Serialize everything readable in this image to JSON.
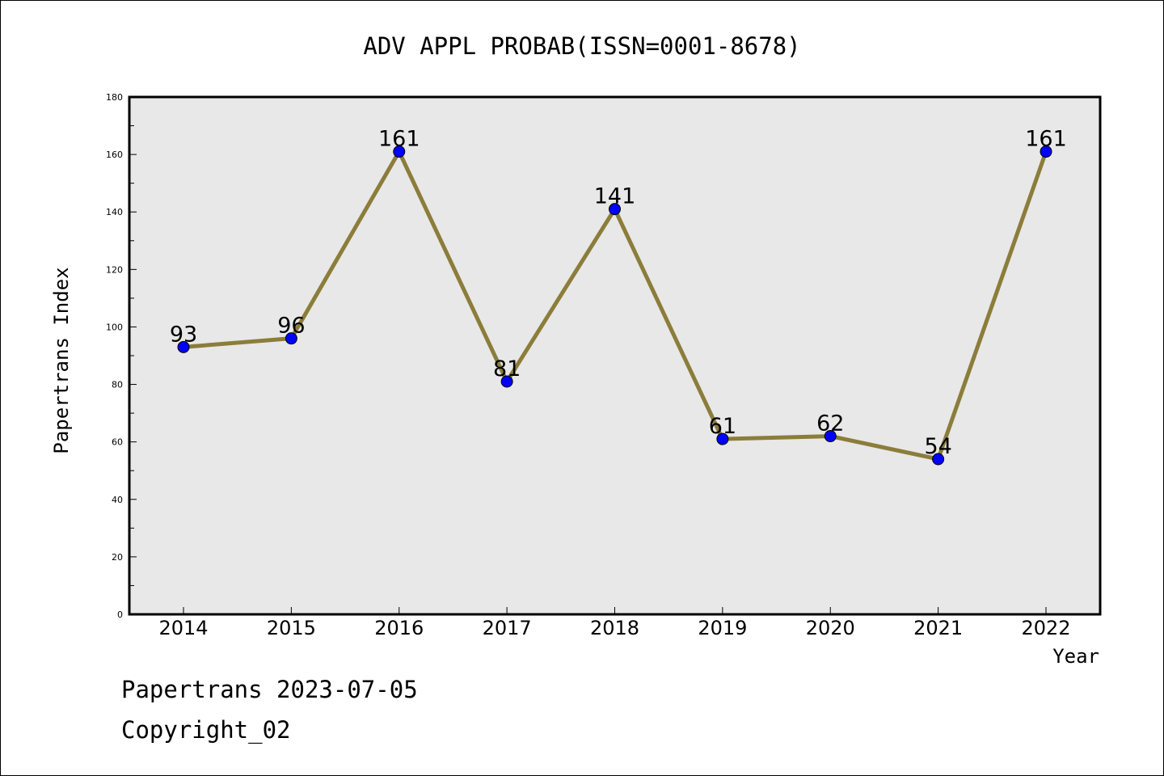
{
  "chart_data": {
    "type": "line",
    "title": "ADV APPL PROBAB(ISSN=0001-8678)",
    "xlabel": "Year",
    "ylabel": "Papertrans Index",
    "x": [
      "2014",
      "2015",
      "2016",
      "2017",
      "2018",
      "2019",
      "2020",
      "2021",
      "2022"
    ],
    "series": [
      {
        "values": [
          93,
          96,
          161,
          81,
          141,
          61,
          62,
          54,
          161
        ]
      }
    ],
    "ylim": [
      0,
      180
    ],
    "yticks": [
      0,
      20,
      40,
      60,
      80,
      100,
      120,
      140,
      160,
      180
    ],
    "grid": false,
    "line_color": "#8b7d3a",
    "marker_color": "#0000ff",
    "plot_background": "#e8e8e8"
  },
  "footer": {
    "line1": "Papertrans 2023-07-05",
    "line2": "Copyright_02"
  }
}
